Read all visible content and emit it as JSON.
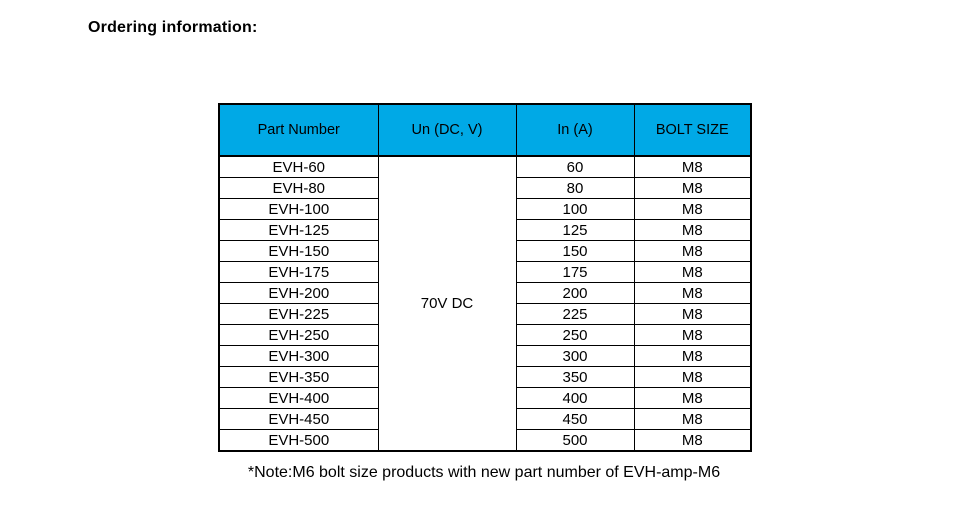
{
  "page": {
    "title": "Ordering information:"
  },
  "table": {
    "header_bg": "#00A9E6",
    "columns": [
      "Part Number",
      "Un (DC, V)",
      "In (A)",
      "BOLT SIZE"
    ],
    "merged_voltage": "70V DC",
    "rows": [
      {
        "part_number": "EVH-60",
        "in_a": "60",
        "bolt_size": "M8"
      },
      {
        "part_number": "EVH-80",
        "in_a": "80",
        "bolt_size": "M8"
      },
      {
        "part_number": "EVH-100",
        "in_a": "100",
        "bolt_size": "M8"
      },
      {
        "part_number": "EVH-125",
        "in_a": "125",
        "bolt_size": "M8"
      },
      {
        "part_number": "EVH-150",
        "in_a": "150",
        "bolt_size": "M8"
      },
      {
        "part_number": "EVH-175",
        "in_a": "175",
        "bolt_size": "M8"
      },
      {
        "part_number": "EVH-200",
        "in_a": "200",
        "bolt_size": "M8"
      },
      {
        "part_number": "EVH-225",
        "in_a": "225",
        "bolt_size": "M8"
      },
      {
        "part_number": "EVH-250",
        "in_a": "250",
        "bolt_size": "M8"
      },
      {
        "part_number": "EVH-300",
        "in_a": "300",
        "bolt_size": "M8"
      },
      {
        "part_number": "EVH-350",
        "in_a": "350",
        "bolt_size": "M8"
      },
      {
        "part_number": "EVH-400",
        "in_a": "400",
        "bolt_size": "M8"
      },
      {
        "part_number": "EVH-450",
        "in_a": "450",
        "bolt_size": "M8"
      },
      {
        "part_number": "EVH-500",
        "in_a": "500",
        "bolt_size": "M8"
      }
    ],
    "note": "*Note:M6 bolt size products with new part number of EVH-amp-M6"
  }
}
